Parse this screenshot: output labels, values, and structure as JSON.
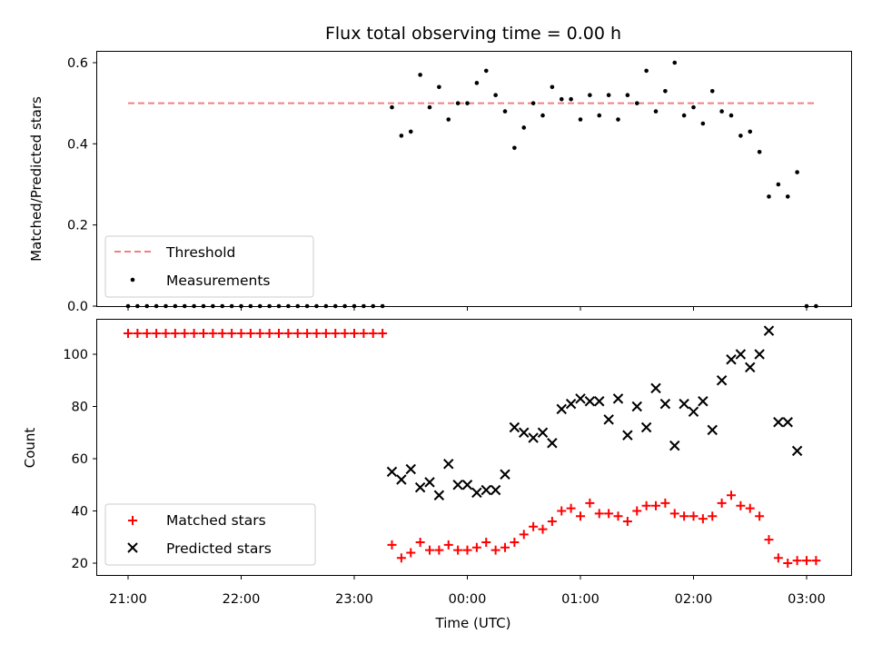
{
  "chart_data": [
    {
      "type": "scatter",
      "title": "Flux total observing time = 0.00 h",
      "ylabel": "Matched/Predicted stars",
      "xlabel": "",
      "x_axis": "time (UTC)",
      "xlim": [
        "20:45",
        "03:25"
      ],
      "ylim": [
        0,
        0.63
      ],
      "yticks": [
        0.0,
        0.2,
        0.4,
        0.6
      ],
      "ytick_labels": [
        "0.0",
        "0.2",
        "0.4",
        "0.6"
      ],
      "grid": false,
      "legend": "lower-left",
      "threshold": {
        "name": "Threshold",
        "value": 0.5,
        "x_start": "21:00",
        "x_end": "03:05",
        "color": "#f08080",
        "style": "dashed"
      },
      "series": [
        {
          "name": "Measurements",
          "color": "#000000",
          "marker": "dot",
          "x": [
            "21:00",
            "21:05",
            "21:10",
            "21:15",
            "21:20",
            "21:25",
            "21:30",
            "21:35",
            "21:40",
            "21:45",
            "21:50",
            "21:55",
            "22:00",
            "22:05",
            "22:10",
            "22:15",
            "22:20",
            "22:25",
            "22:30",
            "22:35",
            "22:40",
            "22:45",
            "22:50",
            "22:55",
            "23:00",
            "23:05",
            "23:10",
            "23:15",
            "23:20",
            "23:25",
            "23:30",
            "23:35",
            "23:40",
            "23:45",
            "23:50",
            "23:55",
            "00:00",
            "00:05",
            "00:10",
            "00:15",
            "00:20",
            "00:25",
            "00:30",
            "00:35",
            "00:40",
            "00:45",
            "00:50",
            "00:55",
            "01:00",
            "01:05",
            "01:10",
            "01:15",
            "01:20",
            "01:25",
            "01:30",
            "01:35",
            "01:40",
            "01:45",
            "01:50",
            "01:55",
            "02:00",
            "02:05",
            "02:10",
            "02:15",
            "02:20",
            "02:25",
            "02:30",
            "02:35",
            "02:40",
            "02:45",
            "02:50",
            "02:55",
            "03:00",
            "03:05"
          ],
          "y": [
            0,
            0,
            0,
            0,
            0,
            0,
            0,
            0,
            0,
            0,
            0,
            0,
            0,
            0,
            0,
            0,
            0,
            0,
            0,
            0,
            0,
            0,
            0,
            0,
            0,
            0,
            0,
            0,
            0.49,
            0.42,
            0.43,
            0.57,
            0.49,
            0.54,
            0.46,
            0.5,
            0.5,
            0.55,
            0.58,
            0.52,
            0.48,
            0.39,
            0.44,
            0.5,
            0.47,
            0.54,
            0.51,
            0.51,
            0.46,
            0.52,
            0.47,
            0.52,
            0.46,
            0.52,
            0.5,
            0.58,
            0.48,
            0.53,
            0.6,
            0.47,
            0.49,
            0.45,
            0.53,
            0.48,
            0.47,
            0.42,
            0.43,
            0.38,
            0.27,
            0.3,
            0.27,
            0.33,
            0,
            0
          ]
        }
      ]
    },
    {
      "type": "scatter",
      "title": "",
      "ylabel": "Count",
      "xlabel": "Time (UTC)",
      "x_axis": "time (UTC)",
      "xlim": [
        "20:45",
        "03:25"
      ],
      "ylim": [
        16,
        114
      ],
      "xticks": [
        "21:00",
        "22:00",
        "23:00",
        "00:00",
        "01:00",
        "02:00",
        "03:00"
      ],
      "yticks": [
        20,
        40,
        60,
        80,
        100
      ],
      "ytick_labels": [
        "20",
        "40",
        "60",
        "80",
        "100"
      ],
      "grid": false,
      "legend": "lower-left",
      "series": [
        {
          "name": "Matched stars",
          "color": "#ff0000",
          "marker": "plus",
          "x": [
            "21:00",
            "21:05",
            "21:10",
            "21:15",
            "21:20",
            "21:25",
            "21:30",
            "21:35",
            "21:40",
            "21:45",
            "21:50",
            "21:55",
            "22:00",
            "22:05",
            "22:10",
            "22:15",
            "22:20",
            "22:25",
            "22:30",
            "22:35",
            "22:40",
            "22:45",
            "22:50",
            "22:55",
            "23:00",
            "23:05",
            "23:10",
            "23:15",
            "23:20",
            "23:25",
            "23:30",
            "23:35",
            "23:40",
            "23:45",
            "23:50",
            "23:55",
            "00:00",
            "00:05",
            "00:10",
            "00:15",
            "00:20",
            "00:25",
            "00:30",
            "00:35",
            "00:40",
            "00:45",
            "00:50",
            "00:55",
            "01:00",
            "01:05",
            "01:10",
            "01:15",
            "01:20",
            "01:25",
            "01:30",
            "01:35",
            "01:40",
            "01:45",
            "01:50",
            "01:55",
            "02:00",
            "02:05",
            "02:10",
            "02:15",
            "02:20",
            "02:25",
            "02:30",
            "02:35",
            "02:40",
            "02:45",
            "02:50",
            "02:55",
            "03:00",
            "03:05"
          ],
          "y": [
            108,
            108,
            108,
            108,
            108,
            108,
            108,
            108,
            108,
            108,
            108,
            108,
            108,
            108,
            108,
            108,
            108,
            108,
            108,
            108,
            108,
            108,
            108,
            108,
            108,
            108,
            108,
            108,
            27,
            22,
            24,
            28,
            25,
            25,
            27,
            25,
            25,
            26,
            28,
            25,
            26,
            28,
            31,
            34,
            33,
            36,
            40,
            41,
            38,
            43,
            39,
            39,
            38,
            36,
            40,
            42,
            42,
            43,
            39,
            38,
            38,
            37,
            38,
            43,
            46,
            42,
            41,
            38,
            29,
            22,
            20,
            21,
            21,
            21
          ]
        },
        {
          "name": "Predicted stars",
          "color": "#000000",
          "marker": "x",
          "x": [
            "23:20",
            "23:25",
            "23:30",
            "23:35",
            "23:40",
            "23:45",
            "23:50",
            "23:55",
            "00:00",
            "00:05",
            "00:10",
            "00:15",
            "00:20",
            "00:25",
            "00:30",
            "00:35",
            "00:40",
            "00:45",
            "00:50",
            "00:55",
            "01:00",
            "01:05",
            "01:10",
            "01:15",
            "01:20",
            "01:25",
            "01:30",
            "01:35",
            "01:40",
            "01:45",
            "01:50",
            "01:55",
            "02:00",
            "02:05",
            "02:10",
            "02:15",
            "02:20",
            "02:25",
            "02:30",
            "02:35",
            "02:40",
            "02:45",
            "02:50",
            "02:55"
          ],
          "y": [
            55,
            52,
            56,
            49,
            51,
            46,
            58,
            50,
            50,
            47,
            48,
            48,
            54,
            72,
            70,
            68,
            70,
            66,
            79,
            81,
            83,
            82,
            82,
            75,
            83,
            69,
            80,
            72,
            87,
            81,
            65,
            81,
            78,
            82,
            71,
            90,
            98,
            100,
            95,
            100,
            109,
            74,
            74,
            63
          ]
        }
      ]
    }
  ]
}
